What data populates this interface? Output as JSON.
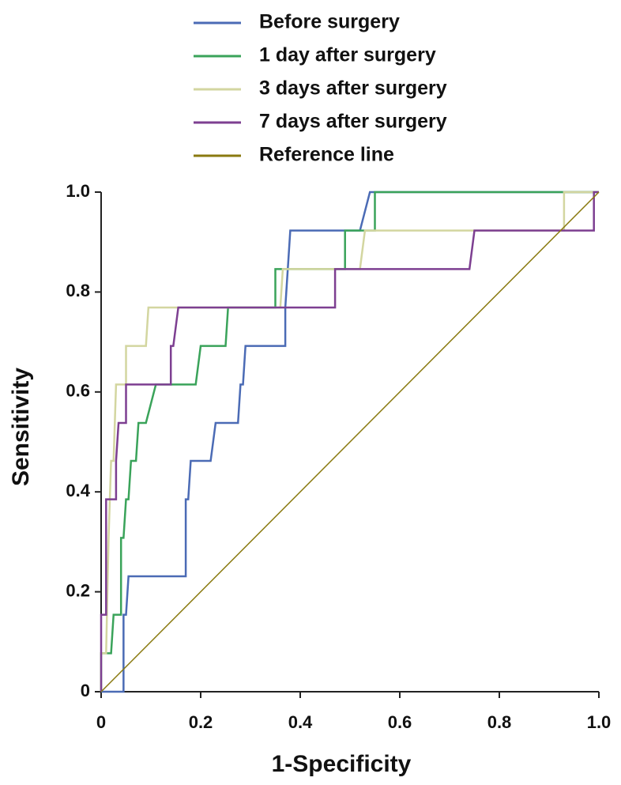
{
  "chart_data": {
    "type": "line",
    "xlabel": "1-Specificity",
    "ylabel": "Sensitivity",
    "xlim": [
      0,
      1
    ],
    "ylim": [
      0,
      1
    ],
    "xticks": [
      0,
      0.2,
      0.4,
      0.6,
      0.8,
      {
        "value": 1,
        "label": "1.0"
      }
    ],
    "yticks": [
      0,
      0.2,
      0.4,
      0.6,
      0.8,
      {
        "value": 1,
        "label": "1.0"
      }
    ],
    "series": [
      {
        "name": "Before surgery",
        "color": "#4b6bb5",
        "x": [
          0,
          0.045,
          0.045,
          0.05,
          0.055,
          0.17,
          0.17,
          0.175,
          0.18,
          0.22,
          0.23,
          0.275,
          0.28,
          0.285,
          0.29,
          0.37,
          0.37,
          0.38,
          0.52,
          0.54,
          1
        ],
        "values": [
          0,
          0,
          0.154,
          0.154,
          0.231,
          0.231,
          0.385,
          0.385,
          0.462,
          0.462,
          0.538,
          0.538,
          0.615,
          0.615,
          0.692,
          0.692,
          0.769,
          0.923,
          0.923,
          1,
          1
        ]
      },
      {
        "name": "1 day after surgery",
        "color": "#3aa35a",
        "x": [
          0,
          0,
          0.02,
          0.025,
          0.04,
          0.04,
          0.045,
          0.05,
          0.055,
          0.06,
          0.07,
          0.075,
          0.09,
          0.11,
          0.19,
          0.2,
          0.25,
          0.255,
          0.35,
          0.35,
          0.49,
          0.49,
          0.55,
          0.55,
          1
        ],
        "values": [
          0,
          0.077,
          0.077,
          0.154,
          0.154,
          0.308,
          0.308,
          0.385,
          0.385,
          0.462,
          0.462,
          0.538,
          0.538,
          0.615,
          0.615,
          0.692,
          0.692,
          0.769,
          0.769,
          0.846,
          0.846,
          0.923,
          0.923,
          1,
          1
        ]
      },
      {
        "name": "3 days after surgery",
        "color": "#d3d6a0",
        "x": [
          0,
          0,
          0.01,
          0.015,
          0.02,
          0.025,
          0.03,
          0.05,
          0.05,
          0.09,
          0.095,
          0.36,
          0.365,
          0.52,
          0.53,
          0.93,
          0.93,
          1
        ],
        "values": [
          0,
          0.077,
          0.077,
          0.308,
          0.462,
          0.462,
          0.615,
          0.615,
          0.692,
          0.692,
          0.769,
          0.769,
          0.846,
          0.846,
          0.923,
          0.923,
          1,
          1
        ]
      },
      {
        "name": "7 days after surgery",
        "color": "#7d3f91",
        "x": [
          0,
          0,
          0.01,
          0.01,
          0.03,
          0.03,
          0.035,
          0.05,
          0.05,
          0.14,
          0.14,
          0.145,
          0.155,
          0.47,
          0.47,
          0.74,
          0.75,
          0.99,
          0.99,
          1
        ],
        "values": [
          0,
          0.154,
          0.154,
          0.385,
          0.385,
          0.462,
          0.538,
          0.538,
          0.615,
          0.615,
          0.692,
          0.692,
          0.769,
          0.769,
          0.846,
          0.846,
          0.923,
          0.923,
          1,
          1
        ]
      },
      {
        "name": "Reference line",
        "color": "#8a7a10",
        "x": [
          0,
          1
        ],
        "values": [
          0,
          1
        ]
      }
    ]
  }
}
